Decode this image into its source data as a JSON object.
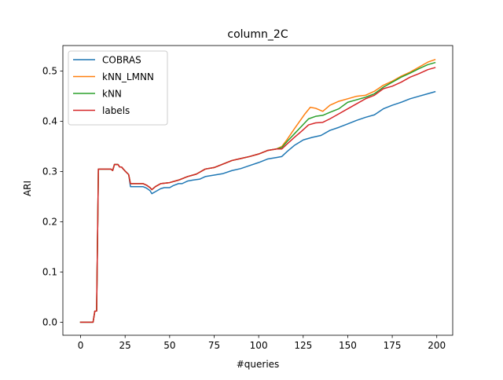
{
  "chart_data": {
    "type": "line",
    "title": "column_2C",
    "xlabel": "#queries",
    "ylabel": "ARI",
    "xlim": [
      -9.95,
      208.95
    ],
    "ylim": [
      -0.026,
      0.551
    ],
    "xticks": [
      0,
      25,
      50,
      75,
      100,
      125,
      150,
      175,
      200
    ],
    "yticks": [
      0.0,
      0.1,
      0.2,
      0.3,
      0.4,
      0.5
    ],
    "ytick_labels": [
      "0.0",
      "0.1",
      "0.2",
      "0.3",
      "0.4",
      "0.5"
    ],
    "grid": false,
    "legend_position": "upper-left",
    "series": [
      {
        "name": "COBRAS",
        "color": "#1f77b4",
        "points": [
          [
            0,
            0.0
          ],
          [
            7,
            0.0
          ],
          [
            8,
            0.022
          ],
          [
            9,
            0.022
          ],
          [
            10,
            0.305
          ],
          [
            17,
            0.305
          ],
          [
            18,
            0.302
          ],
          [
            19,
            0.314
          ],
          [
            21,
            0.314
          ],
          [
            22,
            0.309
          ],
          [
            23,
            0.309
          ],
          [
            25,
            0.301
          ],
          [
            27,
            0.294
          ],
          [
            28,
            0.27
          ],
          [
            35,
            0.27
          ],
          [
            37,
            0.267
          ],
          [
            39,
            0.262
          ],
          [
            40,
            0.256
          ],
          [
            42,
            0.26
          ],
          [
            45,
            0.266
          ],
          [
            47,
            0.268
          ],
          [
            50,
            0.268
          ],
          [
            52,
            0.272
          ],
          [
            55,
            0.276
          ],
          [
            57,
            0.276
          ],
          [
            60,
            0.281
          ],
          [
            63,
            0.283
          ],
          [
            67,
            0.285
          ],
          [
            70,
            0.29
          ],
          [
            75,
            0.293
          ],
          [
            80,
            0.296
          ],
          [
            85,
            0.302
          ],
          [
            90,
            0.306
          ],
          [
            95,
            0.312
          ],
          [
            100,
            0.318
          ],
          [
            105,
            0.325
          ],
          [
            110,
            0.328
          ],
          [
            113,
            0.33
          ],
          [
            116,
            0.34
          ],
          [
            120,
            0.352
          ],
          [
            125,
            0.363
          ],
          [
            130,
            0.368
          ],
          [
            135,
            0.372
          ],
          [
            140,
            0.382
          ],
          [
            145,
            0.388
          ],
          [
            150,
            0.395
          ],
          [
            155,
            0.402
          ],
          [
            160,
            0.408
          ],
          [
            165,
            0.413
          ],
          [
            170,
            0.425
          ],
          [
            175,
            0.432
          ],
          [
            180,
            0.438
          ],
          [
            185,
            0.445
          ],
          [
            190,
            0.45
          ],
          [
            195,
            0.455
          ],
          [
            199,
            0.459
          ]
        ]
      },
      {
        "name": "kNN_LMNN",
        "color": "#ff7f0e",
        "points": [
          [
            0,
            0.0
          ],
          [
            7,
            0.0
          ],
          [
            8,
            0.022
          ],
          [
            9,
            0.022
          ],
          [
            10,
            0.305
          ],
          [
            17,
            0.305
          ],
          [
            18,
            0.302
          ],
          [
            19,
            0.314
          ],
          [
            21,
            0.314
          ],
          [
            22,
            0.309
          ],
          [
            23,
            0.309
          ],
          [
            25,
            0.301
          ],
          [
            27,
            0.294
          ],
          [
            28,
            0.276
          ],
          [
            35,
            0.276
          ],
          [
            37,
            0.273
          ],
          [
            39,
            0.268
          ],
          [
            40,
            0.264
          ],
          [
            42,
            0.27
          ],
          [
            45,
            0.276
          ],
          [
            50,
            0.278
          ],
          [
            55,
            0.283
          ],
          [
            60,
            0.29
          ],
          [
            65,
            0.295
          ],
          [
            70,
            0.305
          ],
          [
            75,
            0.308
          ],
          [
            80,
            0.315
          ],
          [
            85,
            0.322
          ],
          [
            90,
            0.326
          ],
          [
            95,
            0.33
          ],
          [
            100,
            0.335
          ],
          [
            105,
            0.342
          ],
          [
            110,
            0.345
          ],
          [
            113,
            0.35
          ],
          [
            116,
            0.364
          ],
          [
            120,
            0.385
          ],
          [
            123,
            0.4
          ],
          [
            126,
            0.415
          ],
          [
            129,
            0.428
          ],
          [
            132,
            0.426
          ],
          [
            136,
            0.42
          ],
          [
            140,
            0.432
          ],
          [
            145,
            0.44
          ],
          [
            150,
            0.445
          ],
          [
            155,
            0.45
          ],
          [
            160,
            0.452
          ],
          [
            165,
            0.46
          ],
          [
            170,
            0.472
          ],
          [
            175,
            0.48
          ],
          [
            180,
            0.49
          ],
          [
            185,
            0.498
          ],
          [
            190,
            0.508
          ],
          [
            195,
            0.518
          ],
          [
            199,
            0.523
          ]
        ]
      },
      {
        "name": "kNN",
        "color": "#2ca02c",
        "points": [
          [
            0,
            0.0
          ],
          [
            7,
            0.0
          ],
          [
            8,
            0.022
          ],
          [
            9,
            0.022
          ],
          [
            10,
            0.305
          ],
          [
            17,
            0.305
          ],
          [
            18,
            0.302
          ],
          [
            19,
            0.314
          ],
          [
            21,
            0.314
          ],
          [
            22,
            0.309
          ],
          [
            23,
            0.309
          ],
          [
            25,
            0.301
          ],
          [
            27,
            0.294
          ],
          [
            28,
            0.276
          ],
          [
            35,
            0.276
          ],
          [
            37,
            0.273
          ],
          [
            39,
            0.268
          ],
          [
            40,
            0.264
          ],
          [
            42,
            0.27
          ],
          [
            45,
            0.276
          ],
          [
            50,
            0.278
          ],
          [
            55,
            0.283
          ],
          [
            60,
            0.29
          ],
          [
            65,
            0.295
          ],
          [
            70,
            0.305
          ],
          [
            75,
            0.308
          ],
          [
            80,
            0.315
          ],
          [
            85,
            0.322
          ],
          [
            90,
            0.326
          ],
          [
            95,
            0.33
          ],
          [
            100,
            0.335
          ],
          [
            105,
            0.342
          ],
          [
            110,
            0.345
          ],
          [
            113,
            0.348
          ],
          [
            116,
            0.36
          ],
          [
            120,
            0.375
          ],
          [
            124,
            0.39
          ],
          [
            128,
            0.405
          ],
          [
            132,
            0.41
          ],
          [
            136,
            0.412
          ],
          [
            140,
            0.418
          ],
          [
            145,
            0.425
          ],
          [
            150,
            0.438
          ],
          [
            155,
            0.443
          ],
          [
            160,
            0.448
          ],
          [
            165,
            0.455
          ],
          [
            170,
            0.468
          ],
          [
            175,
            0.478
          ],
          [
            180,
            0.488
          ],
          [
            185,
            0.496
          ],
          [
            190,
            0.505
          ],
          [
            195,
            0.513
          ],
          [
            199,
            0.517
          ]
        ]
      },
      {
        "name": "labels",
        "color": "#d62728",
        "points": [
          [
            0,
            0.0
          ],
          [
            7,
            0.0
          ],
          [
            8,
            0.022
          ],
          [
            9,
            0.022
          ],
          [
            10,
            0.305
          ],
          [
            17,
            0.305
          ],
          [
            18,
            0.302
          ],
          [
            19,
            0.314
          ],
          [
            21,
            0.314
          ],
          [
            22,
            0.309
          ],
          [
            23,
            0.309
          ],
          [
            25,
            0.301
          ],
          [
            27,
            0.294
          ],
          [
            28,
            0.276
          ],
          [
            35,
            0.276
          ],
          [
            37,
            0.273
          ],
          [
            39,
            0.268
          ],
          [
            40,
            0.264
          ],
          [
            42,
            0.27
          ],
          [
            45,
            0.276
          ],
          [
            50,
            0.278
          ],
          [
            55,
            0.283
          ],
          [
            60,
            0.29
          ],
          [
            65,
            0.295
          ],
          [
            70,
            0.305
          ],
          [
            75,
            0.308
          ],
          [
            80,
            0.315
          ],
          [
            85,
            0.322
          ],
          [
            90,
            0.326
          ],
          [
            95,
            0.33
          ],
          [
            100,
            0.335
          ],
          [
            105,
            0.342
          ],
          [
            110,
            0.345
          ],
          [
            113,
            0.345
          ],
          [
            116,
            0.355
          ],
          [
            120,
            0.368
          ],
          [
            124,
            0.38
          ],
          [
            128,
            0.393
          ],
          [
            132,
            0.397
          ],
          [
            136,
            0.398
          ],
          [
            140,
            0.405
          ],
          [
            145,
            0.415
          ],
          [
            150,
            0.425
          ],
          [
            155,
            0.435
          ],
          [
            160,
            0.445
          ],
          [
            165,
            0.452
          ],
          [
            170,
            0.465
          ],
          [
            175,
            0.47
          ],
          [
            180,
            0.478
          ],
          [
            185,
            0.488
          ],
          [
            190,
            0.495
          ],
          [
            195,
            0.503
          ],
          [
            199,
            0.507
          ]
        ]
      }
    ]
  }
}
